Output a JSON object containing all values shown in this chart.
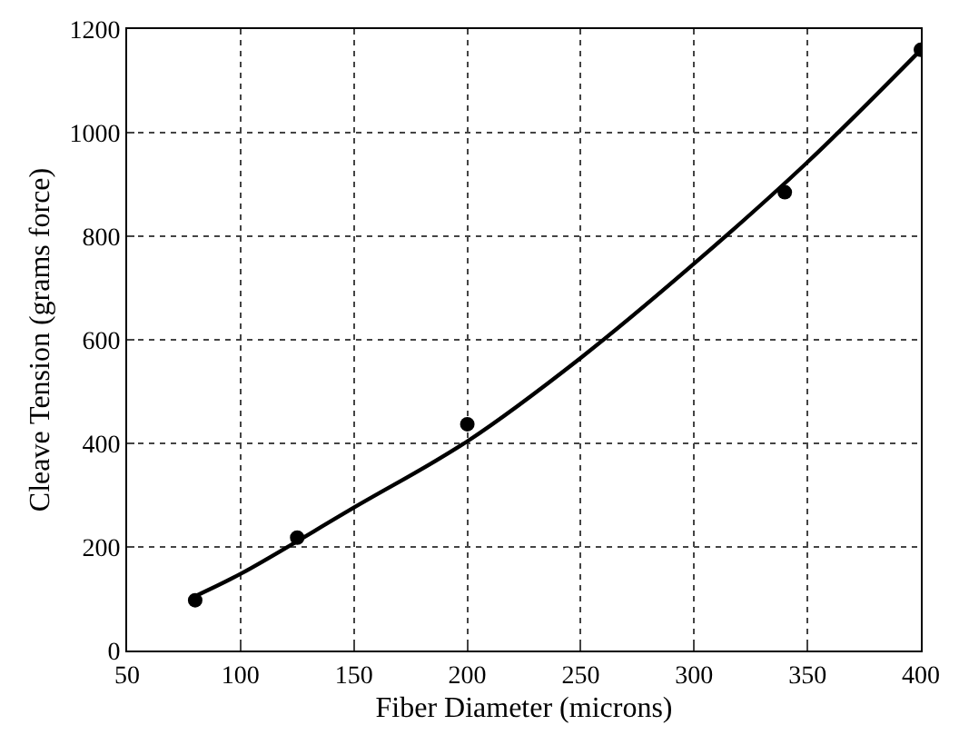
{
  "chart_data": {
    "type": "scatter",
    "xlabel": "Fiber Diameter (microns)",
    "ylabel": "Cleave Tension (grams force)",
    "xlim": [
      50,
      400
    ],
    "xticks": [
      50,
      100,
      150,
      200,
      250,
      300,
      350,
      400
    ],
    "ylim": [
      0,
      1200
    ],
    "yticks": [
      0,
      200,
      400,
      600,
      800,
      1000,
      1200
    ],
    "grid": true,
    "series": [
      {
        "marker": "circle",
        "color": "#000000",
        "x": [
          80,
          125,
          200,
          340,
          400
        ],
        "values": [
          97,
          218,
          437,
          885,
          1160
        ]
      },
      {
        "type": "line",
        "marker": "none",
        "color": "#000000",
        "line_style": "solid",
        "x": [
          80,
          100,
          150,
          200,
          250,
          300,
          350,
          400
        ],
        "values": [
          105,
          148,
          276,
          404,
          565,
          747,
          943,
          1160
        ]
      }
    ]
  }
}
